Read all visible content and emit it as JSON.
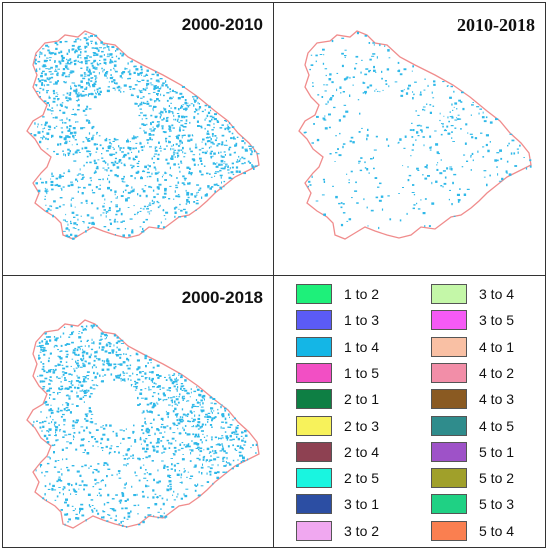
{
  "panels": [
    {
      "title": "2000-2010",
      "density": 1.0,
      "color": "#2fb8e8"
    },
    {
      "title": "2010-2018",
      "density": 0.28,
      "color": "#2fb8e8"
    },
    {
      "title": "2000-2018",
      "density": 0.9,
      "color": "#2fb8e8"
    }
  ],
  "boundary_color": "#f08c8c",
  "legend": {
    "items": [
      {
        "label": "1 to 2",
        "color": "#1ef07a"
      },
      {
        "label": "1 to 3",
        "color": "#5b5bf5"
      },
      {
        "label": "1 to 4",
        "color": "#14b6e6"
      },
      {
        "label": "1 to 5",
        "color": "#f24fc4"
      },
      {
        "label": "2 to 1",
        "color": "#0e7f44"
      },
      {
        "label": "2 to 3",
        "color": "#f7f25b"
      },
      {
        "label": "2 to 4",
        "color": "#8e4152"
      },
      {
        "label": "2 to 5",
        "color": "#19f5e0"
      },
      {
        "label": "3 to 1",
        "color": "#2c4ea3"
      },
      {
        "label": "3 to 2",
        "color": "#f0a8f0"
      },
      {
        "label": "3 to 4",
        "color": "#c4f7a8"
      },
      {
        "label": "3 to 5",
        "color": "#f55af5"
      },
      {
        "label": "4 to 1",
        "color": "#f9c0a4"
      },
      {
        "label": "4 to 2",
        "color": "#f28ea8"
      },
      {
        "label": "4 to 3",
        "color": "#8a5a22"
      },
      {
        "label": "4 to 5",
        "color": "#2f8c8c"
      },
      {
        "label": "5 to 1",
        "color": "#9e52c8"
      },
      {
        "label": "5 to 2",
        "color": "#a0a02a"
      },
      {
        "label": "5 to 3",
        "color": "#1fd184"
      },
      {
        "label": "5 to 4",
        "color": "#fa7f50"
      }
    ]
  }
}
